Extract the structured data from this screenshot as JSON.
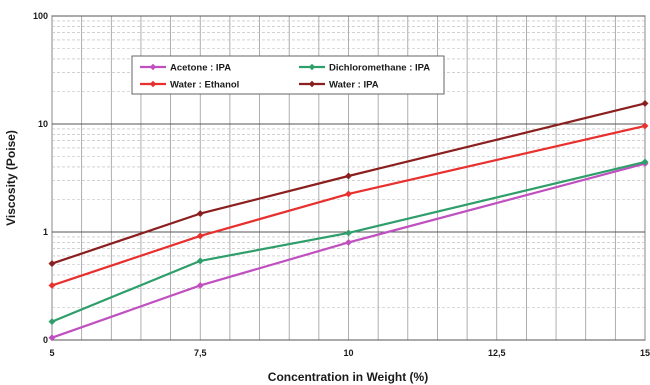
{
  "chart_data": {
    "type": "line",
    "title": "",
    "xlabel": "Concentration in Weight (%)",
    "ylabel": "Viscosity (Poise)",
    "x": [
      5,
      7.5,
      10,
      15
    ],
    "xlim": [
      5,
      15
    ],
    "x_ticks": [
      5,
      7.5,
      10,
      12.5,
      15
    ],
    "x_tick_labels": [
      "5",
      "7,5",
      "10",
      "12,5",
      "15"
    ],
    "y_scale": "log",
    "ylim": [
      0.1,
      100
    ],
    "y_ticks": [
      0.1,
      1,
      10,
      100
    ],
    "y_tick_labels": [
      "0",
      "1",
      "10",
      "100"
    ],
    "grid": true,
    "legend_position": "upper-left",
    "series": [
      {
        "name": "Acetone : IPA",
        "color": "#c050c0",
        "marker": "diamond",
        "values": [
          0.105,
          0.32,
          0.8,
          4.3
        ]
      },
      {
        "name": "Dichloromethane : IPA",
        "color": "#2e9e6a",
        "marker": "diamond",
        "values": [
          0.148,
          0.54,
          0.98,
          4.45
        ]
      },
      {
        "name": "Water : Ethanol",
        "color": "#e8302e",
        "marker": "diamond",
        "values": [
          0.32,
          0.92,
          2.25,
          9.6
        ]
      },
      {
        "name": "Water : IPA",
        "color": "#8b1f1f",
        "marker": "diamond",
        "values": [
          0.51,
          1.48,
          3.3,
          15.5
        ]
      }
    ]
  }
}
